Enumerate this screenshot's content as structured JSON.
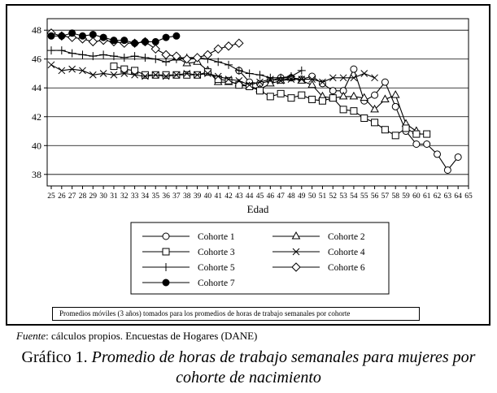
{
  "chart_data": {
    "type": "line",
    "xlabel": "Edad",
    "ylabel": "",
    "x_ticks": [
      25,
      26,
      27,
      28,
      29,
      30,
      31,
      32,
      33,
      34,
      35,
      36,
      37,
      38,
      39,
      40,
      41,
      42,
      43,
      44,
      45,
      46,
      47,
      48,
      49,
      50,
      51,
      52,
      53,
      54,
      55,
      56,
      57,
      58,
      59,
      60,
      61,
      62,
      63,
      64,
      65
    ],
    "y_ticks": [
      38,
      40,
      42,
      44,
      46,
      48
    ],
    "xlim": [
      25,
      65
    ],
    "ylim": [
      37.2,
      48.8
    ],
    "grid": "horizontal",
    "legend_position": "bottom",
    "series": [
      {
        "name": "Cohorte 1",
        "marker": "circle-open",
        "x": [
          43,
          44,
          45,
          46,
          47,
          48,
          49,
          50,
          51,
          52,
          53,
          54,
          55,
          56,
          57,
          58,
          59,
          60,
          61,
          62,
          63,
          64
        ],
        "values": [
          45.2,
          44.4,
          44.3,
          44.5,
          44.7,
          44.7,
          44.6,
          44.8,
          44.3,
          43.8,
          43.8,
          45.3,
          43.1,
          43.5,
          44.4,
          42.7,
          41.0,
          40.1,
          40.1,
          39.4,
          38.3,
          39.2
        ]
      },
      {
        "name": "Cohorte 2",
        "marker": "triangle-open",
        "x": [
          37,
          38,
          39,
          40,
          41,
          42,
          43,
          44,
          45,
          46,
          47,
          48,
          49,
          50,
          51,
          52,
          53,
          54,
          55,
          56,
          57,
          58,
          59,
          60
        ],
        "values": [
          46.1,
          45.7,
          45.8,
          45.2,
          44.4,
          44.4,
          44.3,
          44.1,
          43.9,
          44.3,
          44.5,
          44.7,
          44.5,
          44.2,
          43.4,
          43.3,
          43.4,
          43.4,
          43.3,
          42.5,
          43.2,
          43.5,
          41.5,
          41.0
        ]
      },
      {
        "name": "Cohorte 3",
        "marker": "square-open",
        "x": [
          31,
          32,
          33,
          34,
          35,
          36,
          37,
          38,
          39,
          40,
          41,
          42,
          43,
          44,
          45,
          46,
          47,
          48,
          49,
          50,
          51,
          52,
          53,
          54,
          55,
          56,
          57,
          58,
          59,
          60,
          61
        ],
        "values": [
          45.5,
          45.3,
          45.2,
          44.9,
          44.9,
          44.9,
          44.9,
          44.9,
          44.9,
          45.1,
          44.6,
          44.5,
          44.2,
          44.1,
          43.8,
          43.4,
          43.6,
          43.3,
          43.5,
          43.2,
          43.1,
          43.3,
          42.5,
          42.4,
          41.9,
          41.6,
          41.1,
          40.7,
          41.2,
          40.8,
          40.8
        ]
      },
      {
        "name": "Cohorte 4",
        "marker": "x",
        "x": [
          25,
          26,
          27,
          28,
          29,
          30,
          31,
          32,
          33,
          34,
          35,
          36,
          37,
          38,
          39,
          40,
          41,
          42,
          43,
          44,
          45,
          46,
          47,
          48,
          49,
          50,
          51,
          52,
          53,
          54,
          55,
          56
        ],
        "values": [
          45.6,
          45.2,
          45.3,
          45.2,
          44.9,
          45.0,
          44.9,
          45.0,
          44.9,
          44.8,
          44.9,
          44.8,
          44.9,
          45.0,
          44.9,
          45.0,
          44.8,
          44.6,
          44.5,
          44.2,
          44.4,
          44.6,
          44.5,
          44.6,
          44.6,
          44.6,
          44.4,
          44.7,
          44.7,
          44.7,
          45.0,
          44.7
        ]
      },
      {
        "name": "Cohorte 5",
        "marker": "plus",
        "x": [
          25,
          26,
          27,
          28,
          29,
          30,
          31,
          32,
          33,
          34,
          35,
          36,
          37,
          38,
          39,
          40,
          41,
          42,
          43,
          44,
          45,
          46,
          47,
          48,
          49
        ],
        "values": [
          46.6,
          46.6,
          46.4,
          46.3,
          46.2,
          46.3,
          46.2,
          46.1,
          46.2,
          46.1,
          46.0,
          45.8,
          46.0,
          46.1,
          46.1,
          46.0,
          45.8,
          45.6,
          45.2,
          45.0,
          44.9,
          44.7,
          44.7,
          44.8,
          45.2
        ]
      },
      {
        "name": "Cohorte 6",
        "marker": "diamond-open",
        "x": [
          25,
          26,
          27,
          28,
          29,
          30,
          31,
          32,
          33,
          34,
          35,
          36,
          37,
          38,
          39,
          40,
          41,
          42,
          43
        ],
        "values": [
          47.8,
          47.6,
          47.5,
          47.4,
          47.2,
          47.3,
          47.2,
          47.1,
          47.1,
          47.2,
          46.7,
          46.3,
          46.2,
          46.0,
          46.1,
          46.3,
          46.7,
          46.9,
          47.1
        ]
      },
      {
        "name": "Cohorte 7",
        "marker": "circle-filled",
        "x": [
          25,
          26,
          27,
          28,
          29,
          30,
          31,
          32,
          33,
          34,
          35,
          36,
          37
        ],
        "values": [
          47.6,
          47.6,
          47.8,
          47.6,
          47.7,
          47.5,
          47.3,
          47.3,
          47.1,
          47.2,
          47.2,
          47.5,
          47.6
        ]
      }
    ]
  },
  "note": "Promedios móviles (3 años) tomados para los promedios de horas de trabajo semanales por cohorte",
  "source_label": "Fuente",
  "source_text": ": cálculos propios. Encuestas de Hogares (DANE)",
  "caption_label": "Gráfico 1.",
  "caption_title": "Promedio de horas de trabajo semanales para mujeres por cohorte de nacimiento"
}
